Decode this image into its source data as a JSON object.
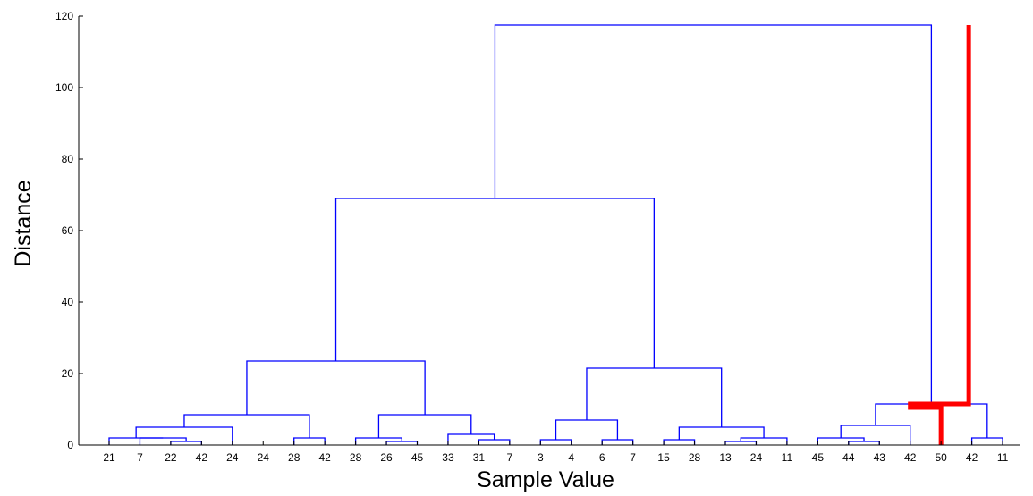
{
  "chart_data": {
    "type": "dendrogram",
    "xlabel": "Sample Value",
    "ylabel": "Distance",
    "ylim": [
      0,
      120
    ],
    "yticks": [
      0,
      20,
      40,
      60,
      80,
      100,
      120
    ],
    "leaf_labels": [
      "21",
      "7",
      "22",
      "42",
      "24",
      "24",
      "28",
      "42",
      "28",
      "26",
      "45",
      "33",
      "31",
      "7",
      "3",
      "4",
      "6",
      "7",
      "15",
      "28",
      "13",
      "24",
      "11",
      "45",
      "44",
      "43",
      "42",
      "50",
      "42",
      "11"
    ],
    "links": [
      {
        "left": 2,
        "right": 3,
        "height": 1.0
      },
      {
        "left": 1,
        "right": 2.5,
        "height": 2.0
      },
      {
        "left": 0,
        "right": 1.75,
        "height": 2.0
      },
      {
        "left": 0.875,
        "right": 4,
        "height": 5.0
      },
      {
        "left": 6,
        "right": 7,
        "height": 2.0
      },
      {
        "left": 2.4375,
        "right": 6.5,
        "height": 8.5
      },
      {
        "left": 9,
        "right": 10,
        "height": 1.0
      },
      {
        "left": 8,
        "right": 9.5,
        "height": 2.0
      },
      {
        "left": 12,
        "right": 13,
        "height": 1.5
      },
      {
        "left": 11,
        "right": 12.5,
        "height": 3.0
      },
      {
        "left": 8.75,
        "right": 11.75,
        "height": 8.5
      },
      {
        "left": 4.46875,
        "right": 10.25,
        "height": 23.5
      },
      {
        "left": 14,
        "right": 15,
        "height": 1.5
      },
      {
        "left": 16,
        "right": 17,
        "height": 1.5
      },
      {
        "left": 14.5,
        "right": 16.5,
        "height": 7.0
      },
      {
        "left": 18,
        "right": 19,
        "height": 1.5
      },
      {
        "left": 20,
        "right": 21,
        "height": 1.0
      },
      {
        "left": 20.5,
        "right": 22,
        "height": 2.0
      },
      {
        "left": 18.5,
        "right": 21.25,
        "height": 5.0
      },
      {
        "left": 15.5,
        "right": 19.875,
        "height": 21.5
      },
      {
        "left": 7.359375,
        "right": 17.6875,
        "height": 69.0
      },
      {
        "left": 24,
        "right": 25,
        "height": 1.0
      },
      {
        "left": 23,
        "right": 24.5,
        "height": 2.0
      },
      {
        "left": 23.75,
        "right": 26,
        "height": 5.5
      },
      {
        "left": 28,
        "right": 29,
        "height": 2.0
      },
      {
        "left": 24.875,
        "right": 28.5,
        "height": 11.5
      },
      {
        "left": 12.5234375,
        "right": 26.6875,
        "height": 117.5
      }
    ],
    "highlight_color": "#ff0000",
    "line_color": "#0000ff"
  }
}
